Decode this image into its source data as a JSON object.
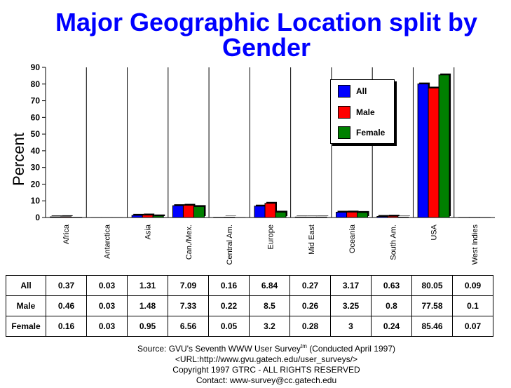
{
  "chart_data": {
    "type": "bar",
    "title": "Major Geographic Location split by Gender",
    "title_lines": [
      "Major Geographic Location split by",
      "Gender"
    ],
    "ylabel": "Percent",
    "xlabel": "",
    "ylim": [
      0,
      90
    ],
    "yticks": [
      0,
      10,
      20,
      30,
      40,
      50,
      60,
      70,
      80,
      90
    ],
    "grid": "vertical category separators",
    "legend_position": "top-right",
    "categories": [
      "Africa",
      "Antarctica",
      "Asia",
      "Can./Mex.",
      "Central Am.",
      "Europe",
      "Mid East",
      "Oceania",
      "South Am.",
      "USA",
      "West Indies"
    ],
    "series": [
      {
        "name": "All",
        "color": "#0000ff",
        "values": [
          0.37,
          0.03,
          1.31,
          7.09,
          0.16,
          6.84,
          0.27,
          3.17,
          0.63,
          80.05,
          0.09
        ]
      },
      {
        "name": "Male",
        "color": "#ff0000",
        "values": [
          0.46,
          0.03,
          1.48,
          7.33,
          0.22,
          8.5,
          0.26,
          3.25,
          0.8,
          77.58,
          0.1
        ]
      },
      {
        "name": "Female",
        "color": "#008000",
        "values": [
          0.16,
          0.03,
          0.95,
          6.56,
          0.05,
          3.2,
          0.28,
          3,
          0.24,
          85.46,
          0.07
        ]
      }
    ],
    "table": {
      "rows": [
        {
          "label": "All",
          "values": [
            "0.37",
            "0.03",
            "1.31",
            "7.09",
            "0.16",
            "6.84",
            "0.27",
            "3.17",
            "0.63",
            "80.05",
            "0.09"
          ]
        },
        {
          "label": "Male",
          "values": [
            "0.46",
            "0.03",
            "1.48",
            "7.33",
            "0.22",
            "8.5",
            "0.26",
            "3.25",
            "0.8",
            "77.58",
            "0.1"
          ]
        },
        {
          "label": "Female",
          "values": [
            "0.16",
            "0.03",
            "0.95",
            "6.56",
            "0.05",
            "3.2",
            "0.28",
            "3",
            "0.24",
            "85.46",
            "0.07"
          ]
        }
      ]
    }
  },
  "footer": {
    "line1_prefix": "Source: GVU's Seventh WWW User Survey",
    "line1_sup": "tm",
    "line1_suffix": " (Conducted April 1997)",
    "line2": "<URL:http://www.gvu.gatech.edu/user_surveys/>",
    "line3": "Copyright 1997 GTRC - ALL RIGHTS RESERVED",
    "line4": "Contact: www-survey@cc.gatech.edu"
  }
}
